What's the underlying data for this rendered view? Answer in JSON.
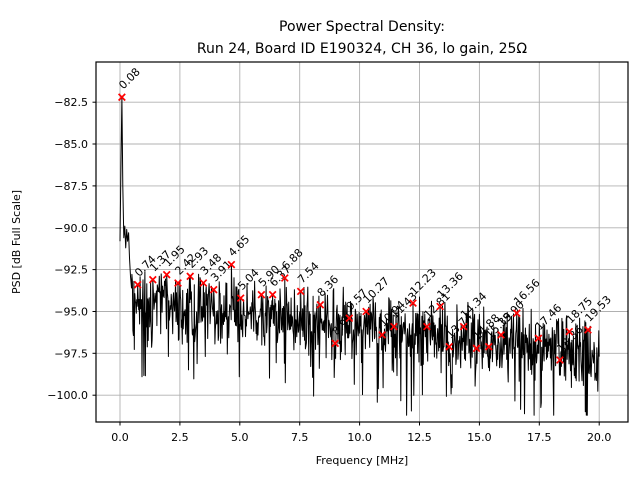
{
  "figure": {
    "background": "#ffffff",
    "frame_color": "#000000",
    "grid_color": "#b0b0b0",
    "text_color": "#000000"
  },
  "chart_data": {
    "type": "line",
    "title": "Power Spectral Density:\nRun 24, Board ID E190324, CH 36, lo gain, 25Ω",
    "title_lines": [
      "Power Spectral Density:",
      "Run 24, Board ID E190324, CH 36, lo gain, 25Ω"
    ],
    "xlabel": "Frequency [MHz]",
    "ylabel": "PSD [dB Full Scale]",
    "xlim": [
      -1.0,
      21.2
    ],
    "ylim": [
      -101.6,
      -80.1
    ],
    "grid": true,
    "legend": false,
    "xticks": {
      "values": [
        0.0,
        2.5,
        5.0,
        7.5,
        10.0,
        12.5,
        15.0,
        17.5,
        20.0
      ],
      "labels": [
        "0.0",
        "2.5",
        "5.0",
        "7.5",
        "10.0",
        "12.5",
        "15.0",
        "17.5",
        "20.0"
      ]
    },
    "yticks": {
      "values": [
        -82.5,
        -85.0,
        -87.5,
        -90.0,
        -92.5,
        -95.0,
        -97.5,
        -100.0
      ],
      "labels": [
        "−82.5",
        "−85.0",
        "−87.5",
        "−90.0",
        "−92.5",
        "−95.0",
        "−97.5",
        "−100.0"
      ]
    },
    "series": [
      {
        "name": "PSD trace",
        "color": "#000000",
        "description": "noisy power-spectral-density curve; noise floor drifts from about -94 dBFS at low frequency down to about -98 dBFS at 20 MHz with spikes at the annotated peaks"
      }
    ],
    "noise_floor": {
      "start_db": -94.3,
      "slope_db_per_mhz": -0.16,
      "spread_db": 2.4
    },
    "lead_in_points": [
      [
        0.0,
        -90.8
      ],
      [
        0.04,
        -86.5
      ],
      [
        0.08,
        -82.2
      ],
      [
        0.12,
        -87.5
      ],
      [
        0.16,
        -90.6
      ],
      [
        0.2,
        -89.9
      ],
      [
        0.24,
        -91.2
      ],
      [
        0.28,
        -90.1
      ],
      [
        0.32,
        -90.8
      ],
      [
        0.36,
        -90.3
      ],
      [
        0.4,
        -91.8
      ],
      [
        0.44,
        -92.9
      ],
      [
        0.48,
        -93.6
      ]
    ],
    "peak_marker": {
      "shape": "x",
      "color": "#ff0000"
    },
    "annotation_rotation_deg": 45,
    "peaks": [
      {
        "f": 0.08,
        "db": -82.2,
        "label": "0.08"
      },
      {
        "f": 0.74,
        "db": -93.4,
        "label": "0.74"
      },
      {
        "f": 1.37,
        "db": -93.1,
        "label": "1.37"
      },
      {
        "f": 1.95,
        "db": -92.8,
        "label": "1.95"
      },
      {
        "f": 2.42,
        "db": -93.3,
        "label": "2.42"
      },
      {
        "f": 2.93,
        "db": -92.9,
        "label": "2.93"
      },
      {
        "f": 3.48,
        "db": -93.3,
        "label": "3.48"
      },
      {
        "f": 3.91,
        "db": -93.7,
        "label": "3.91"
      },
      {
        "f": 4.65,
        "db": -92.2,
        "label": "4.65"
      },
      {
        "f": 5.04,
        "db": -94.2,
        "label": "5.04"
      },
      {
        "f": 5.9,
        "db": -94.0,
        "label": "5.90"
      },
      {
        "f": 6.37,
        "db": -94.0,
        "label": "6.37"
      },
      {
        "f": 6.88,
        "db": -93.0,
        "label": "6.88"
      },
      {
        "f": 7.54,
        "db": -93.8,
        "label": "7.54"
      },
      {
        "f": 8.36,
        "db": -94.6,
        "label": "8.36"
      },
      {
        "f": 8.98,
        "db": -96.9,
        "label": "8.98"
      },
      {
        "f": 9.57,
        "db": -95.4,
        "label": "9.57"
      },
      {
        "f": 10.27,
        "db": -95.0,
        "label": "10.27"
      },
      {
        "f": 10.94,
        "db": -96.4,
        "label": "10.94"
      },
      {
        "f": 11.43,
        "db": -95.9,
        "label": "11.43"
      },
      {
        "f": 12.23,
        "db": -94.5,
        "label": "12.23"
      },
      {
        "f": 12.81,
        "db": -95.9,
        "label": "12.81"
      },
      {
        "f": 13.36,
        "db": -94.7,
        "label": "13.36"
      },
      {
        "f": 13.74,
        "db": -97.1,
        "label": "13.74"
      },
      {
        "f": 14.34,
        "db": -95.9,
        "label": "14.34"
      },
      {
        "f": 14.88,
        "db": -97.2,
        "label": "14.88"
      },
      {
        "f": 15.39,
        "db": -97.1,
        "label": "15.39"
      },
      {
        "f": 15.9,
        "db": -96.4,
        "label": "15.90"
      },
      {
        "f": 16.56,
        "db": -95.1,
        "label": "16.56"
      },
      {
        "f": 17.46,
        "db": -96.6,
        "label": "17.46"
      },
      {
        "f": 18.36,
        "db": -97.9,
        "label": "18.36"
      },
      {
        "f": 18.75,
        "db": -96.2,
        "label": "18.75"
      },
      {
        "f": 19.53,
        "db": -96.1,
        "label": "19.53"
      }
    ]
  }
}
